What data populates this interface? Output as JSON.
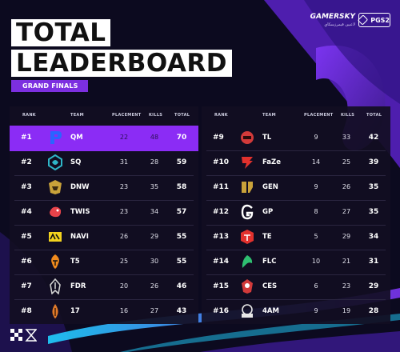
{
  "header": {
    "title_line1": "TOTAL",
    "title_line2": "LEADERBOARD",
    "subtitle": "GRAND FINALS"
  },
  "brand": {
    "name": "GAMERSKY",
    "sub": "لاعبين قيمرزسكاي",
    "badge": "PGS2"
  },
  "columns": {
    "rank": "RANK",
    "team": "TEAM",
    "placement": "PLACEMENT",
    "kills": "KILLS",
    "total": "TOTAL"
  },
  "colors": {
    "accent": "#8b2cf5",
    "panel": "#120e22",
    "background": "#0c0a1f"
  },
  "left_table": [
    {
      "rank": "#1",
      "team": "QM",
      "placement": "22",
      "kills": "48",
      "total": "70",
      "logo": "qm-logo-icon",
      "logo_color": "#2a64ff"
    },
    {
      "rank": "#2",
      "team": "SQ",
      "placement": "31",
      "kills": "28",
      "total": "59",
      "logo": "sq-logo-icon",
      "logo_color": "#2fb6c8"
    },
    {
      "rank": "#3",
      "team": "DNW",
      "placement": "23",
      "kills": "35",
      "total": "58",
      "logo": "dnw-logo-icon",
      "logo_color": "#c9a23a"
    },
    {
      "rank": "#4",
      "team": "TWIS",
      "placement": "23",
      "kills": "34",
      "total": "57",
      "logo": "twis-logo-icon",
      "logo_color": "#e8434a"
    },
    {
      "rank": "#5",
      "team": "NAVI",
      "placement": "26",
      "kills": "29",
      "total": "55",
      "logo": "navi-logo-icon",
      "logo_color": "#f2d21e"
    },
    {
      "rank": "#6",
      "team": "T5",
      "placement": "25",
      "kills": "30",
      "total": "55",
      "logo": "t5-logo-icon",
      "logo_color": "#f08a1d"
    },
    {
      "rank": "#7",
      "team": "FDR",
      "placement": "20",
      "kills": "26",
      "total": "46",
      "logo": "fdr-logo-icon",
      "logo_color": "#cfcfcf"
    },
    {
      "rank": "#8",
      "team": "17",
      "placement": "16",
      "kills": "27",
      "total": "43",
      "logo": "17-logo-icon",
      "logo_color": "#e07a2a"
    }
  ],
  "right_table": [
    {
      "rank": "#9",
      "team": "TL",
      "placement": "9",
      "kills": "33",
      "total": "42",
      "logo": "tl-logo-icon",
      "logo_color": "#d23a3a"
    },
    {
      "rank": "#10",
      "team": "FaZe",
      "placement": "14",
      "kills": "25",
      "total": "39",
      "logo": "faze-logo-icon",
      "logo_color": "#e2312d"
    },
    {
      "rank": "#11",
      "team": "GEN",
      "placement": "9",
      "kills": "26",
      "total": "35",
      "logo": "gen-logo-icon",
      "logo_color": "#c9a23a"
    },
    {
      "rank": "#12",
      "team": "GP",
      "placement": "8",
      "kills": "27",
      "total": "35",
      "logo": "gp-logo-icon",
      "logo_color": "#ffffff"
    },
    {
      "rank": "#13",
      "team": "TE",
      "placement": "5",
      "kills": "29",
      "total": "34",
      "logo": "te-logo-icon",
      "logo_color": "#e2312d"
    },
    {
      "rank": "#14",
      "team": "FLC",
      "placement": "10",
      "kills": "21",
      "total": "31",
      "logo": "flc-logo-icon",
      "logo_color": "#2fbf71"
    },
    {
      "rank": "#15",
      "team": "CES",
      "placement": "6",
      "kills": "23",
      "total": "29",
      "logo": "ces-logo-icon",
      "logo_color": "#d23a3a"
    },
    {
      "rank": "#16",
      "team": "4AM",
      "placement": "9",
      "kills": "19",
      "total": "28",
      "logo": "4am-logo-icon",
      "logo_color": "#e8e8e8"
    }
  ]
}
